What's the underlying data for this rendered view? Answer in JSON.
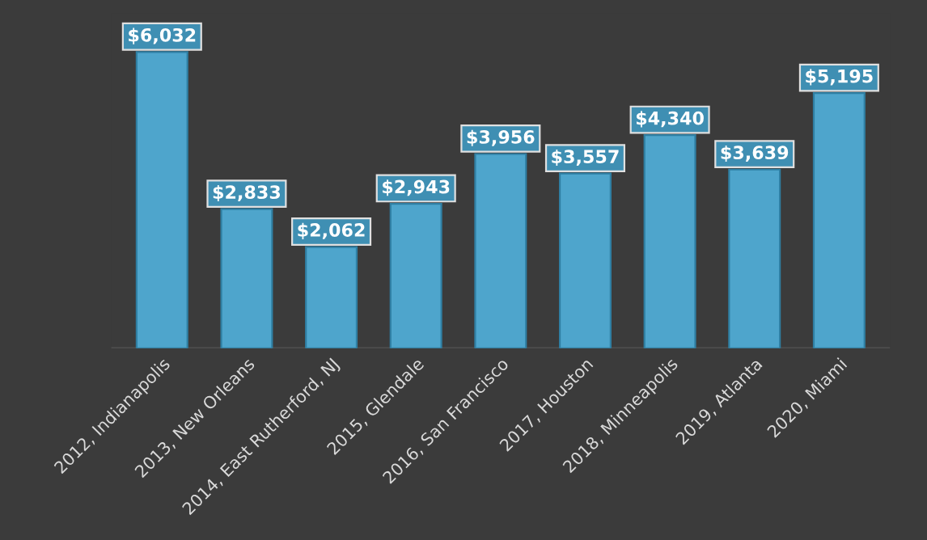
{
  "chart_data": {
    "type": "bar",
    "categories": [
      "2012, Indianapolis",
      "2013, New Orleans",
      "2014, East Rutherford, NJ",
      "2015, Glendale",
      "2016, San Francisco",
      "2017, Houston",
      "2018, Minneapolis",
      "2019, Atlanta",
      "2020, Miami"
    ],
    "values": [
      6032,
      2833,
      2062,
      2943,
      3956,
      3557,
      4340,
      3639,
      5195
    ],
    "value_labels": [
      "$6,032",
      "$2,833",
      "$2,062",
      "$2,943",
      "$3,956",
      "$3,557",
      "$4,340",
      "$3,639",
      "$5,195"
    ],
    "color": "#4ea5cc",
    "tick_labels": "x",
    "grid": false,
    "legend": false
  }
}
